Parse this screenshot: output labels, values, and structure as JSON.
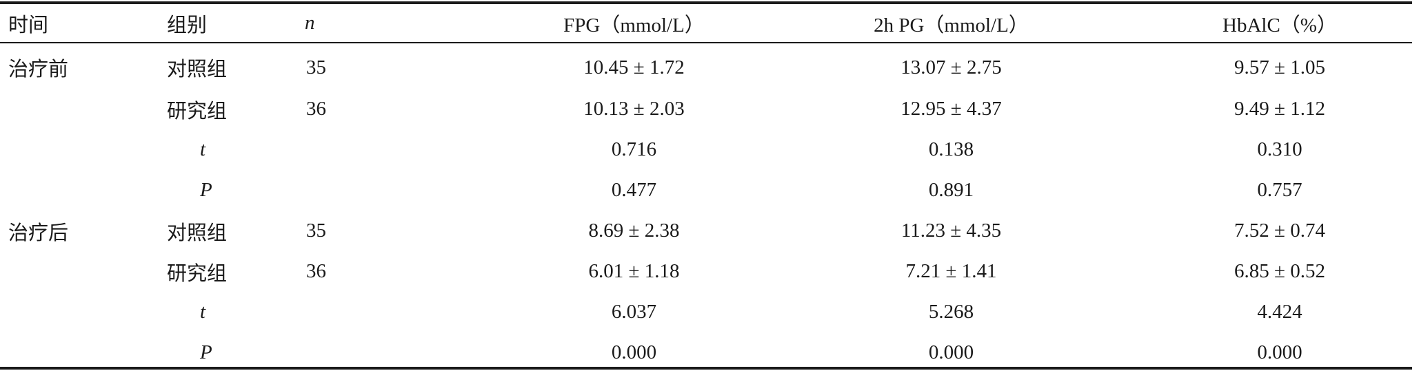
{
  "table": {
    "headers": {
      "time": "时间",
      "group": "组别",
      "n": "n",
      "fpg": "FPG（mmol/L）",
      "pg2h": "2h PG（mmol/L）",
      "hba1c": "HbAlC（%）"
    },
    "rows": [
      {
        "time": "治疗前",
        "group": "对照组",
        "n": "35",
        "fpg": "10.45 ± 1.72",
        "pg2h": "13.07 ± 2.75",
        "hba1c": "9.57 ± 1.05"
      },
      {
        "time": "",
        "group": "研究组",
        "n": "36",
        "fpg": "10.13 ± 2.03",
        "pg2h": "12.95 ± 4.37",
        "hba1c": "9.49 ± 1.12"
      },
      {
        "time": "",
        "group": "t",
        "n": "",
        "fpg": "0.716",
        "pg2h": "0.138",
        "hba1c": "0.310"
      },
      {
        "time": "",
        "group": "P",
        "n": "",
        "fpg": "0.477",
        "pg2h": "0.891",
        "hba1c": "0.757"
      },
      {
        "time": "治疗后",
        "group": "对照组",
        "n": "35",
        "fpg": "8.69 ± 2.38",
        "pg2h": "11.23 ± 4.35",
        "hba1c": "7.52 ± 0.74"
      },
      {
        "time": "",
        "group": "研究组",
        "n": "36",
        "fpg": "6.01 ± 1.18",
        "pg2h": "7.21 ± 1.41",
        "hba1c": "6.85 ± 0.52"
      },
      {
        "time": "",
        "group": "t",
        "n": "",
        "fpg": "6.037",
        "pg2h": "5.268",
        "hba1c": "4.424"
      },
      {
        "time": "",
        "group": "P",
        "n": "",
        "fpg": "0.000",
        "pg2h": "0.000",
        "hba1c": "0.000"
      }
    ]
  }
}
